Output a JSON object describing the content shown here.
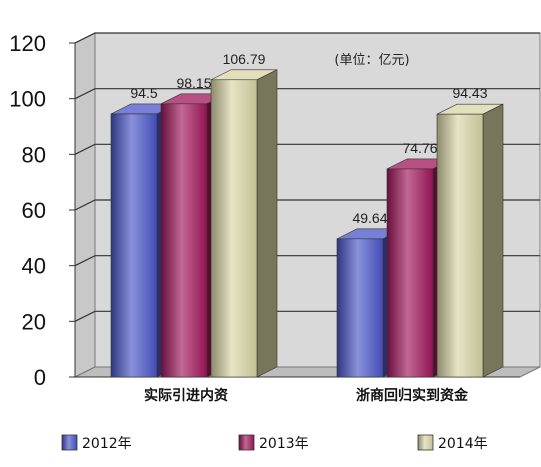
{
  "chart_data": {
    "type": "bar",
    "title": "",
    "unit_note": "(单位：亿元)",
    "categories": [
      "实际引进内资",
      "浙商回归实到资金"
    ],
    "series": [
      {
        "name": "2012年",
        "values": [
          94.5,
          49.64
        ],
        "labels": [
          "94.5",
          "49.64"
        ],
        "color": "#4a55c8"
      },
      {
        "name": "2013年",
        "values": [
          98.15,
          74.76
        ],
        "labels": [
          "98.15",
          "74.76"
        ],
        "color": "#a0165a"
      },
      {
        "name": "2014年",
        "values": [
          106.79,
          94.43
        ],
        "labels": [
          "106.79",
          "94.43"
        ],
        "color": "#d8d6a6"
      }
    ],
    "ylim": [
      0,
      120
    ],
    "yticks": [
      "0",
      "20",
      "40",
      "60",
      "80",
      "100",
      "120"
    ],
    "grid": true,
    "legend_position": "bottom"
  }
}
